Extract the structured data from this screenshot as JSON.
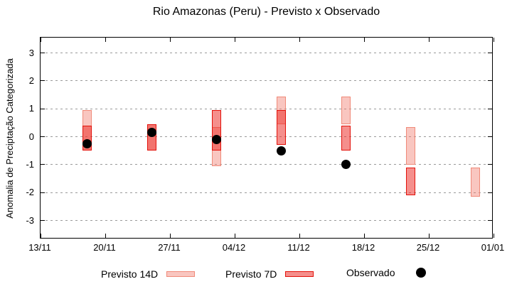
{
  "title": "Rio Amazonas (Peru) - Previsto x Observado",
  "ylabel": "Anomalia de Preciptação Categorizada",
  "legend": [
    {
      "label": "Previsto 14D",
      "marker": "box-light"
    },
    {
      "label": "Previsto 7D",
      "marker": "box-dark"
    },
    {
      "label": "Observado",
      "marker": "dot"
    }
  ],
  "colors": {
    "previsto_14d_fill": "rgba(240,120,105,0.42)",
    "previsto_14d_border": "#f08a79",
    "previsto_7d_fill": "rgba(235,40,35,0.52)",
    "previsto_7d_border": "#e3120b",
    "observado": "#000000",
    "grid": "#9a9a9a",
    "axis": "#000000"
  },
  "chart_data": {
    "type": "bar",
    "subtype": "forecast-range-boxes-with-observed-dots",
    "title": "Rio Amazonas (Peru) - Previsto x Observado",
    "xlabel": "",
    "ylabel": "Anomalia de Preciptação Categorizada",
    "grid": "horizontal-dotted",
    "legend_position": "below-plot",
    "ylim": [
      -3.67,
      3.55
    ],
    "y_ticks": [
      3,
      2,
      1,
      0,
      -1,
      -2,
      -3
    ],
    "xlim_days": [
      0,
      49
    ],
    "x_tick_days": [
      0,
      7,
      14,
      21,
      28,
      35,
      42,
      49
    ],
    "x_tick_labels": [
      "13/11",
      "20/11",
      "27/11",
      "04/12",
      "11/12",
      "18/12",
      "25/12",
      "01/01"
    ],
    "series_names": [
      "Previsto 14D",
      "Previsto 7D",
      "Observado"
    ],
    "groups": [
      {
        "day": 5,
        "date": "18/11",
        "previsto_14d": [
          -0.5,
          0.95
        ],
        "previsto_7d": [
          -0.5,
          0.4
        ],
        "observado": -0.25
      },
      {
        "day": 12,
        "date": "25/11",
        "previsto_14d": [
          -0.5,
          0.45
        ],
        "previsto_7d": [
          -0.5,
          0.45
        ],
        "observado": 0.15
      },
      {
        "day": 19,
        "date": "02/12",
        "previsto_14d": [
          -1.05,
          0.35
        ],
        "previsto_7d": [
          -0.5,
          0.95
        ],
        "observado": -0.1
      },
      {
        "day": 26,
        "date": "09/12",
        "previsto_14d": [
          0.45,
          1.45
        ],
        "previsto_7d": [
          -0.3,
          0.95
        ],
        "observado": -0.5
      },
      {
        "day": 33,
        "date": "16/12",
        "previsto_14d": [
          0.45,
          1.45
        ],
        "previsto_7d": [
          -0.5,
          0.4
        ],
        "observado": -1.0
      },
      {
        "day": 40,
        "date": "23/12",
        "previsto_14d": [
          -1.0,
          0.35
        ],
        "previsto_7d": [
          -2.1,
          -1.1
        ],
        "observado": null
      },
      {
        "day": 47,
        "date": "30/12",
        "previsto_14d": [
          -2.15,
          -1.1
        ],
        "previsto_7d": null,
        "observado": null
      }
    ]
  }
}
